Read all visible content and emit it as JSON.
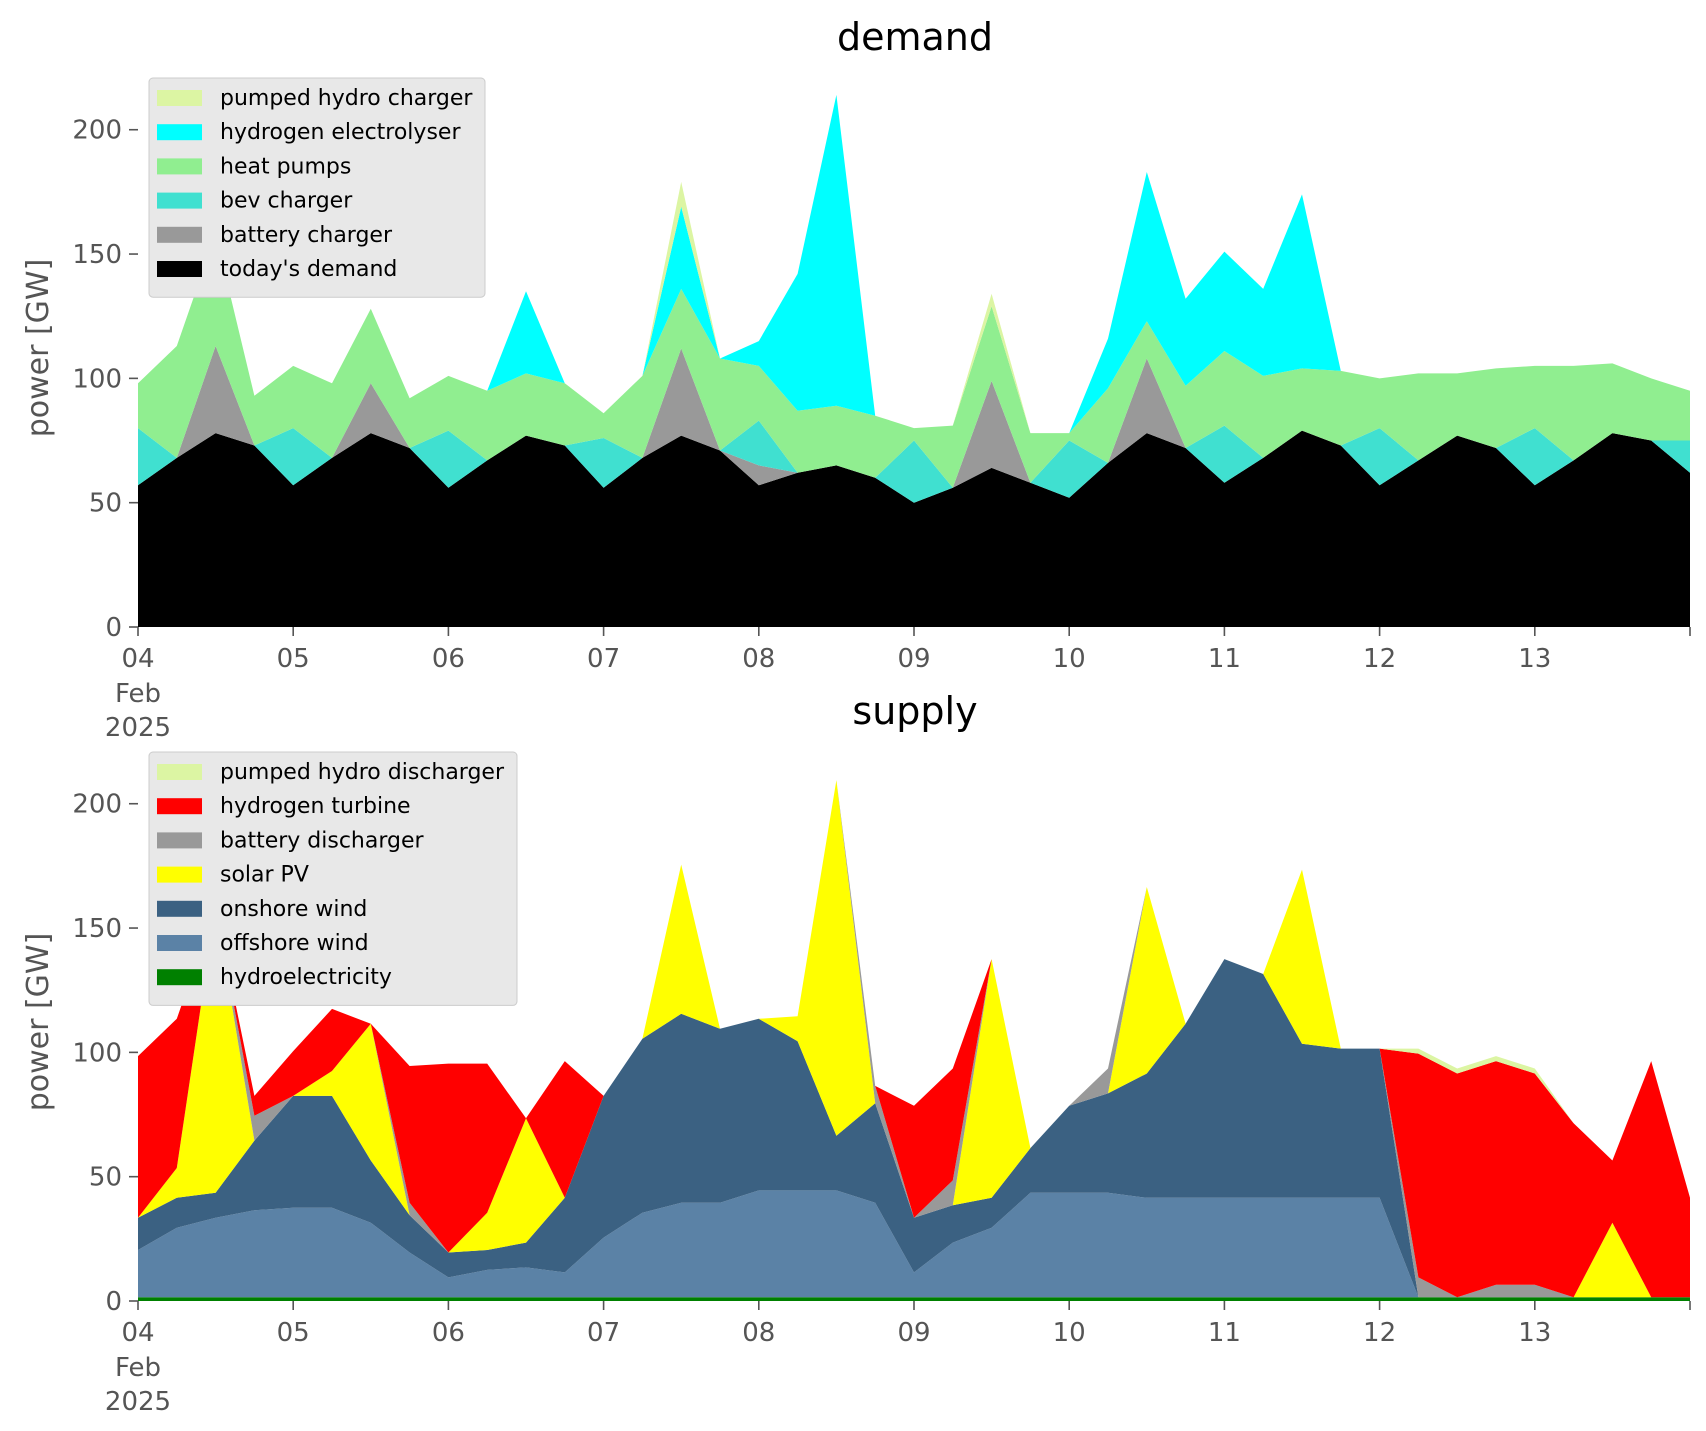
{
  "colors": {
    "pumped_hydro": "#dcf5a3",
    "hydrogen_electrolyser": "#00ffff",
    "heat_pumps": "#90ee90",
    "bev_charger": "#40e0d0",
    "battery": "#999999",
    "todays_demand": "#000000",
    "hydrogen_turbine": "#ff0000",
    "solar_pv": "#ffff00",
    "onshore_wind": "#3b6182",
    "offshore_wind": "#5b82a6",
    "hydroelectricity": "#008000",
    "legend_background": "#e8e8e8"
  },
  "x_tick_labels": [
    "04",
    "05",
    "06",
    "07",
    "08",
    "09",
    "10",
    "11",
    "12",
    "13"
  ],
  "x_first_tick_sub": [
    "Feb",
    "2025"
  ],
  "chart_data": [
    {
      "type": "area",
      "title": "demand",
      "xlabel": "",
      "ylabel": "power [GW]",
      "x_range": [
        "2025-02-04",
        "2025-02-14"
      ],
      "ylim": [
        0,
        220
      ],
      "yticks": [
        0,
        50,
        100,
        150,
        200
      ],
      "stacked": true,
      "grid": false,
      "legend_position": "top-left",
      "x": [
        "2025-02-04 00:00",
        "2025-02-04 06:00",
        "2025-02-04 12:00",
        "2025-02-04 18:00",
        "2025-02-05 00:00",
        "2025-02-05 06:00",
        "2025-02-05 12:00",
        "2025-02-05 18:00",
        "2025-02-06 00:00",
        "2025-02-06 06:00",
        "2025-02-06 12:00",
        "2025-02-06 18:00",
        "2025-02-07 00:00",
        "2025-02-07 06:00",
        "2025-02-07 12:00",
        "2025-02-07 18:00",
        "2025-02-08 00:00",
        "2025-02-08 06:00",
        "2025-02-08 12:00",
        "2025-02-08 18:00",
        "2025-02-09 00:00",
        "2025-02-09 06:00",
        "2025-02-09 12:00",
        "2025-02-09 18:00",
        "2025-02-10 00:00",
        "2025-02-10 06:00",
        "2025-02-10 12:00",
        "2025-02-10 18:00",
        "2025-02-11 00:00",
        "2025-02-11 06:00",
        "2025-02-11 12:00",
        "2025-02-11 18:00",
        "2025-02-12 00:00",
        "2025-02-12 06:00",
        "2025-02-12 12:00",
        "2025-02-12 18:00",
        "2025-02-13 00:00",
        "2025-02-13 06:00",
        "2025-02-13 12:00",
        "2025-02-13 18:00",
        "2025-02-14 00:00"
      ],
      "series": [
        {
          "name": "today's demand",
          "color_key": "todays_demand",
          "values": [
            57,
            68,
            78,
            73,
            57,
            68,
            78,
            72,
            56,
            67,
            77,
            73,
            56,
            68,
            77,
            71,
            57,
            62,
            65,
            60,
            50,
            56,
            64,
            58,
            52,
            66,
            78,
            72,
            58,
            68,
            79,
            73,
            57,
            67,
            77,
            72,
            57,
            67,
            78,
            75,
            62
          ]
        },
        {
          "name": "battery charger",
          "color_key": "battery",
          "values": [
            0,
            0,
            35,
            0,
            0,
            0,
            20,
            0,
            0,
            0,
            0,
            0,
            0,
            0,
            35,
            0,
            8,
            0,
            0,
            0,
            0,
            0,
            35,
            0,
            0,
            0,
            30,
            0,
            0,
            0,
            0,
            0,
            0,
            0,
            0,
            0,
            0,
            0,
            0,
            0,
            0
          ]
        },
        {
          "name": "bev charger",
          "color_key": "bev_charger",
          "values": [
            23,
            0,
            0,
            0,
            23,
            0,
            0,
            0,
            23,
            0,
            0,
            0,
            20,
            0,
            0,
            0,
            18,
            0,
            0,
            0,
            25,
            0,
            0,
            0,
            23,
            0,
            0,
            0,
            23,
            0,
            0,
            0,
            23,
            0,
            0,
            0,
            23,
            0,
            0,
            0,
            13
          ]
        },
        {
          "name": "heat pumps",
          "color_key": "heat_pumps",
          "values": [
            18,
            45,
            45,
            20,
            25,
            30,
            30,
            20,
            22,
            28,
            25,
            25,
            10,
            33,
            24,
            37,
            22,
            25,
            24,
            25,
            5,
            25,
            30,
            20,
            3,
            30,
            15,
            25,
            30,
            33,
            25,
            30,
            20,
            35,
            25,
            32,
            25,
            38,
            28,
            25,
            20
          ]
        },
        {
          "name": "hydrogen electrolyser",
          "color_key": "hydrogen_electrolyser",
          "values": [
            0,
            0,
            0,
            0,
            0,
            0,
            0,
            0,
            0,
            0,
            33,
            0,
            0,
            0,
            33,
            0,
            10,
            55,
            125,
            0,
            0,
            0,
            0,
            0,
            0,
            20,
            60,
            35,
            40,
            35,
            70,
            0,
            0,
            0,
            0,
            0,
            0,
            0,
            0,
            0,
            0
          ]
        },
        {
          "name": "pumped hydro charger",
          "color_key": "pumped_hydro",
          "values": [
            0,
            0,
            0,
            0,
            0,
            0,
            0,
            0,
            0,
            0,
            0,
            0,
            0,
            0,
            10,
            0,
            0,
            0,
            0,
            0,
            0,
            0,
            5,
            0,
            0,
            0,
            0,
            0,
            0,
            0,
            0,
            0,
            0,
            0,
            0,
            0,
            0,
            0,
            0,
            0,
            0
          ]
        }
      ],
      "legend_order": [
        "pumped hydro charger",
        "hydrogen electrolyser",
        "heat pumps",
        "bev charger",
        "battery charger",
        "today's demand"
      ]
    },
    {
      "type": "area",
      "title": "supply",
      "xlabel": "",
      "ylabel": "power [GW]",
      "x_range": [
        "2025-02-04",
        "2025-02-14"
      ],
      "ylim": [
        0,
        220
      ],
      "yticks": [
        0,
        50,
        100,
        150,
        200
      ],
      "stacked": true,
      "grid": false,
      "legend_position": "top-left",
      "x": [
        "2025-02-04 00:00",
        "2025-02-04 06:00",
        "2025-02-04 12:00",
        "2025-02-04 18:00",
        "2025-02-05 00:00",
        "2025-02-05 06:00",
        "2025-02-05 12:00",
        "2025-02-05 18:00",
        "2025-02-06 00:00",
        "2025-02-06 06:00",
        "2025-02-06 12:00",
        "2025-02-06 18:00",
        "2025-02-07 00:00",
        "2025-02-07 06:00",
        "2025-02-07 12:00",
        "2025-02-07 18:00",
        "2025-02-08 00:00",
        "2025-02-08 06:00",
        "2025-02-08 12:00",
        "2025-02-08 18:00",
        "2025-02-09 00:00",
        "2025-02-09 06:00",
        "2025-02-09 12:00",
        "2025-02-09 18:00",
        "2025-02-10 00:00",
        "2025-02-10 06:00",
        "2025-02-10 12:00",
        "2025-02-10 18:00",
        "2025-02-11 00:00",
        "2025-02-11 06:00",
        "2025-02-11 12:00",
        "2025-02-11 18:00",
        "2025-02-12 00:00",
        "2025-02-12 06:00",
        "2025-02-12 12:00",
        "2025-02-12 18:00",
        "2025-02-13 00:00",
        "2025-02-13 06:00",
        "2025-02-13 12:00",
        "2025-02-13 18:00",
        "2025-02-14 00:00"
      ],
      "series": [
        {
          "name": "hydroelectricity",
          "color_key": "hydroelectricity",
          "values": [
            1.5,
            1.5,
            1.5,
            1.5,
            1.5,
            1.5,
            1.5,
            1.5,
            1.5,
            1.5,
            1.5,
            1.5,
            1.5,
            1.5,
            1.5,
            1.5,
            1.5,
            1.5,
            1.5,
            1.5,
            1.5,
            1.5,
            1.5,
            1.5,
            1.5,
            1.5,
            1.5,
            1.5,
            1.5,
            1.5,
            1.5,
            1.5,
            1.5,
            1.5,
            1.5,
            1.5,
            1.5,
            1.5,
            1.5,
            1.5,
            1.5
          ]
        },
        {
          "name": "offshore wind",
          "color_key": "offshore_wind",
          "values": [
            19,
            28,
            32,
            35,
            36,
            36,
            30,
            18,
            8,
            11,
            12,
            10,
            24,
            34,
            38,
            38,
            43,
            43,
            43,
            38,
            10,
            22,
            28,
            42,
            42,
            42,
            40,
            40,
            40,
            40,
            40,
            40,
            40,
            0,
            0,
            0,
            0,
            0,
            0,
            0,
            0
          ]
        },
        {
          "name": "onshore wind",
          "color_key": "onshore_wind",
          "values": [
            13,
            12,
            10,
            28,
            45,
            45,
            25,
            15,
            10,
            8,
            10,
            30,
            57,
            70,
            76,
            70,
            69,
            60,
            22,
            40,
            22,
            15,
            12,
            18,
            35,
            40,
            50,
            70,
            96,
            90,
            62,
            60,
            60,
            0,
            0,
            0,
            0,
            0,
            0,
            0,
            0
          ]
        },
        {
          "name": "solar PV",
          "color_key": "solar_pv",
          "values": [
            0,
            12,
            115,
            0,
            0,
            10,
            55,
            0,
            0,
            15,
            50,
            0,
            0,
            0,
            60,
            0,
            0,
            10,
            143,
            0,
            0,
            0,
            96,
            0,
            0,
            0,
            75,
            0,
            0,
            0,
            70,
            0,
            0,
            0,
            0,
            0,
            0,
            0,
            30,
            0,
            0
          ]
        },
        {
          "name": "battery discharger",
          "color_key": "battery",
          "values": [
            0,
            0,
            0,
            10,
            0,
            0,
            0,
            5,
            0,
            0,
            0,
            0,
            0,
            0,
            0,
            0,
            0,
            0,
            0,
            7,
            0,
            10,
            0,
            0,
            0,
            10,
            0,
            0,
            0,
            0,
            0,
            0,
            0,
            8,
            0,
            5,
            5,
            0,
            0,
            0,
            0
          ]
        },
        {
          "name": "hydrogen turbine",
          "color_key": "hydrogen_turbine",
          "values": [
            65,
            60,
            0,
            8,
            18,
            25,
            0,
            55,
            76,
            60,
            0,
            55,
            0,
            0,
            0,
            0,
            0,
            0,
            0,
            0,
            45,
            45,
            0,
            0,
            0,
            0,
            0,
            0,
            0,
            0,
            0,
            0,
            0,
            90,
            90,
            90,
            85,
            70,
            25,
            95,
            40
          ]
        },
        {
          "name": "pumped hydro discharger",
          "color_key": "pumped_hydro",
          "values": [
            0,
            0,
            0,
            0,
            0,
            0,
            0,
            0,
            0,
            0,
            0,
            0,
            0,
            0,
            0,
            0,
            0,
            0,
            0,
            0,
            0,
            0,
            0,
            0,
            0,
            0,
            0,
            0,
            0,
            0,
            0,
            0,
            0,
            2,
            2,
            2,
            2,
            0,
            0,
            0,
            0
          ]
        }
      ],
      "legend_order": [
        "pumped hydro discharger",
        "hydrogen turbine",
        "battery discharger",
        "solar PV",
        "onshore wind",
        "offshore wind",
        "hydroelectricity"
      ]
    }
  ]
}
